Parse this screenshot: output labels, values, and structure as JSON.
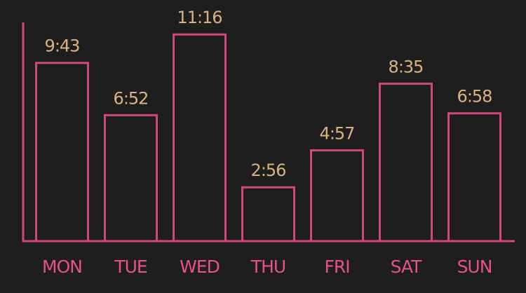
{
  "colors": {
    "background": "#1f1e1f",
    "bar_stroke": "#d0477f",
    "axis": "#d0477f",
    "value_text": "#d9b37f",
    "category_text": "#e5508d"
  },
  "chart_data": {
    "type": "bar",
    "categories": [
      "MON",
      "TUE",
      "WED",
      "THU",
      "FRI",
      "SAT",
      "SUN"
    ],
    "value_labels": [
      "9:43",
      "6:52",
      "11:16",
      "2:56",
      "4:57",
      "8:35",
      "6:58"
    ],
    "values_minutes": [
      583,
      412,
      676,
      176,
      297,
      515,
      418
    ],
    "title": "",
    "xlabel": "",
    "ylabel": "",
    "ylim": [
      0,
      720
    ],
    "grid": false,
    "legend": "none"
  }
}
